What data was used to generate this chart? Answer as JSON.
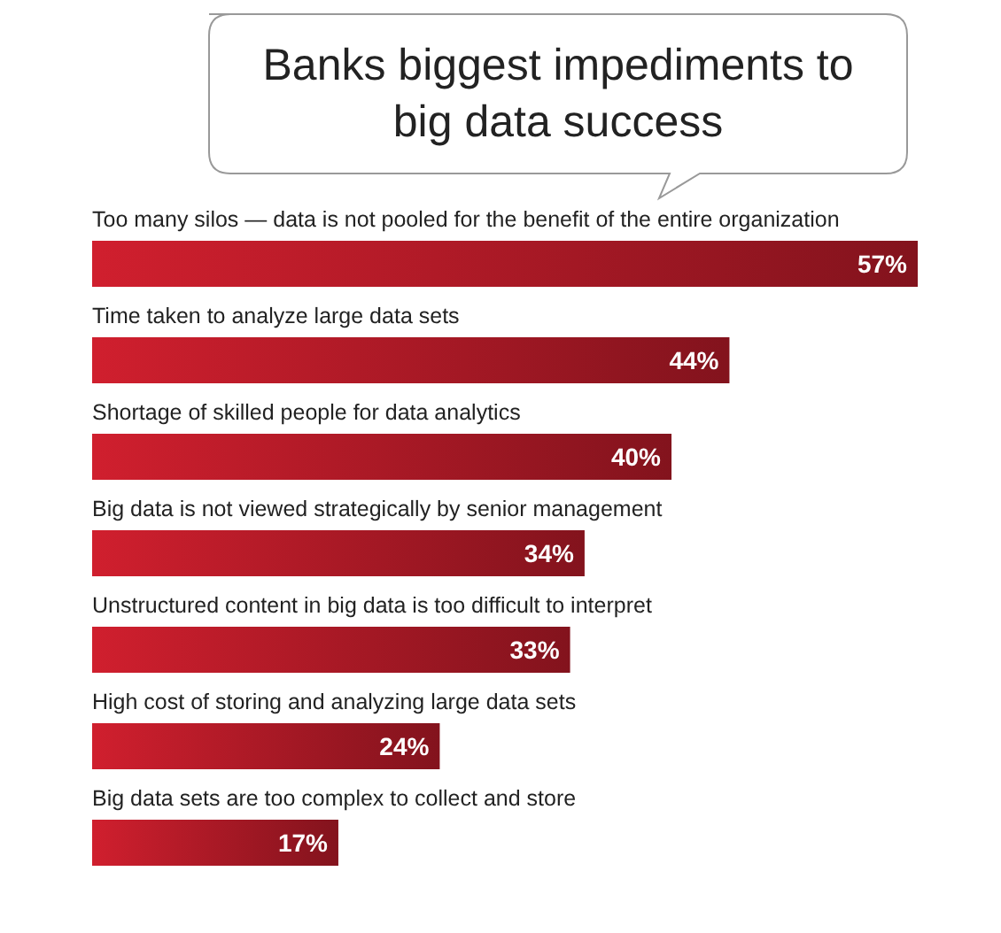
{
  "chart_data": {
    "type": "bar",
    "orientation": "horizontal",
    "title": "Banks biggest impediments to big data success",
    "categories": [
      "Too many silos — data is not pooled for the benefit of the entire organization",
      "Time taken to analyze large data sets",
      "Shortage of skilled people for data analytics",
      "Big data is not viewed strategically by senior management",
      "Unstructured content in big data is too difficult to interpret",
      "High cost of storing and analyzing large data sets",
      "Big data sets are too complex to collect and store"
    ],
    "values": [
      57,
      44,
      40,
      34,
      33,
      24,
      17
    ],
    "value_labels": [
      "57%",
      "44%",
      "40%",
      "34%",
      "33%",
      "24%",
      "17%"
    ],
    "color": "#d01f2e"
  }
}
